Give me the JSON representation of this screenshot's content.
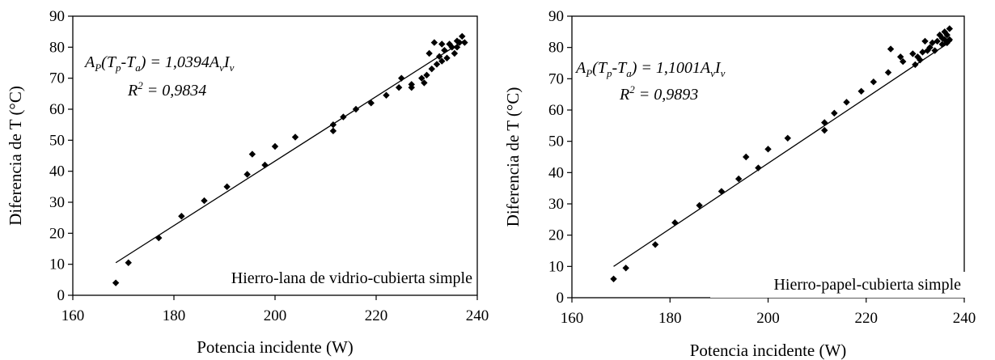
{
  "chart_data": [
    {
      "type": "scatter",
      "xlabel": "Potencia incidente (W)",
      "ylabel": "Diferencia de T (°C)",
      "xlim": [
        160,
        240
      ],
      "ylim": [
        0,
        90
      ],
      "x_ticks": [
        "160",
        "180",
        "200",
        "220",
        "240"
      ],
      "y_ticks": [
        "0",
        "10",
        "20",
        "30",
        "40",
        "50",
        "60",
        "70",
        "80",
        "90"
      ],
      "grid": false,
      "legend_position": "bottom-right",
      "equation": {
        "parts": [
          {
            "t": "A",
            "s": "n"
          },
          {
            "t": "P",
            "s": "sub"
          },
          {
            "t": "(T",
            "s": "n"
          },
          {
            "t": "p",
            "s": "sub"
          },
          {
            "t": "-T",
            "s": "n"
          },
          {
            "t": "a",
            "s": "sub"
          },
          {
            "t": ") = 1,0394A",
            "s": "n"
          },
          {
            "t": "v",
            "s": "sub"
          },
          {
            "t": "I",
            "s": "n"
          },
          {
            "t": "v",
            "s": "sub"
          }
        ],
        "r2_parts": [
          {
            "t": "R",
            "s": "n"
          },
          {
            "t": "2",
            "s": "sup"
          },
          {
            "t": " = 0,9834",
            "s": "n"
          }
        ]
      },
      "series": [
        {
          "name": "Hierro-lana de vidrio-cubierta simple",
          "marker": "diamond",
          "x": [
            168.5,
            171,
            177,
            181.5,
            186,
            190.5,
            194.5,
            195.5,
            198,
            200,
            204,
            211.5,
            211.5,
            213.5,
            216,
            219,
            222,
            224.5,
            225,
            227,
            227,
            229,
            229.5,
            230,
            230.5,
            231,
            231.5,
            232,
            232.5,
            233,
            233,
            233.5,
            234,
            234.5,
            235,
            235.5,
            236,
            236,
            236.5,
            237,
            237.5
          ],
          "y": [
            4,
            10.5,
            18.5,
            25.5,
            30.5,
            35,
            39,
            45.5,
            42,
            48,
            51,
            55,
            53,
            57.5,
            60,
            62,
            64.5,
            67,
            70,
            68,
            67,
            70,
            68.5,
            71,
            78,
            73,
            81.5,
            74.5,
            77,
            75.5,
            81,
            79,
            76.5,
            81,
            80,
            78,
            82,
            80,
            81.5,
            83.5,
            81.5
          ]
        }
      ],
      "trendline": {
        "x": [
          168.5,
          237.5
        ],
        "y": [
          10.5,
          82.3
        ]
      }
    },
    {
      "type": "scatter",
      "xlabel": "Potencia incidente (W)",
      "ylabel": "Diferencia de T (°C)",
      "xlim": [
        160,
        240
      ],
      "ylim": [
        0,
        90
      ],
      "x_ticks": [
        "160",
        "180",
        "200",
        "220",
        "240"
      ],
      "y_ticks": [
        "0",
        "10",
        "20",
        "30",
        "40",
        "50",
        "60",
        "70",
        "80",
        "90"
      ],
      "grid": false,
      "legend_position": "bottom-right",
      "equation": {
        "parts": [
          {
            "t": "A",
            "s": "n"
          },
          {
            "t": "P",
            "s": "sub"
          },
          {
            "t": "(T",
            "s": "n"
          },
          {
            "t": "p",
            "s": "sub"
          },
          {
            "t": "-T",
            "s": "n"
          },
          {
            "t": "a",
            "s": "sub"
          },
          {
            "t": ") = 1,1001A",
            "s": "n"
          },
          {
            "t": "v",
            "s": "sub"
          },
          {
            "t": "I",
            "s": "n"
          },
          {
            "t": "v",
            "s": "sub"
          }
        ],
        "r2_parts": [
          {
            "t": "R",
            "s": "n"
          },
          {
            "t": "2",
            "s": "sup"
          },
          {
            "t": " = 0,9893",
            "s": "n"
          }
        ]
      },
      "series": [
        {
          "name": "Hierro-papel-cubierta simple",
          "marker": "diamond",
          "x": [
            168.5,
            171,
            177,
            181,
            186,
            190.5,
            194,
            195.5,
            198,
            200,
            204,
            211.5,
            211.5,
            213.5,
            216,
            219,
            221.5,
            224.5,
            225,
            227,
            227.5,
            229.5,
            230,
            230.5,
            231,
            231.5,
            232,
            232.5,
            233,
            233.5,
            234,
            234.5,
            235,
            235.5,
            235.5,
            236,
            236,
            236.5,
            236.5,
            237,
            237
          ],
          "y": [
            6,
            9.5,
            17,
            24,
            29.5,
            34,
            38,
            45,
            41.5,
            47.5,
            51,
            56,
            53.5,
            59,
            62.5,
            66,
            69,
            72,
            79.5,
            77,
            75.5,
            78,
            74.5,
            77,
            76,
            78.5,
            82,
            79,
            80,
            81.5,
            79,
            82,
            84,
            81,
            83,
            82.5,
            85,
            81.5,
            84,
            86,
            82.5
          ]
        }
      ],
      "trendline": {
        "x": [
          168.5,
          237.5
        ],
        "y": [
          10,
          82.2
        ]
      }
    }
  ]
}
